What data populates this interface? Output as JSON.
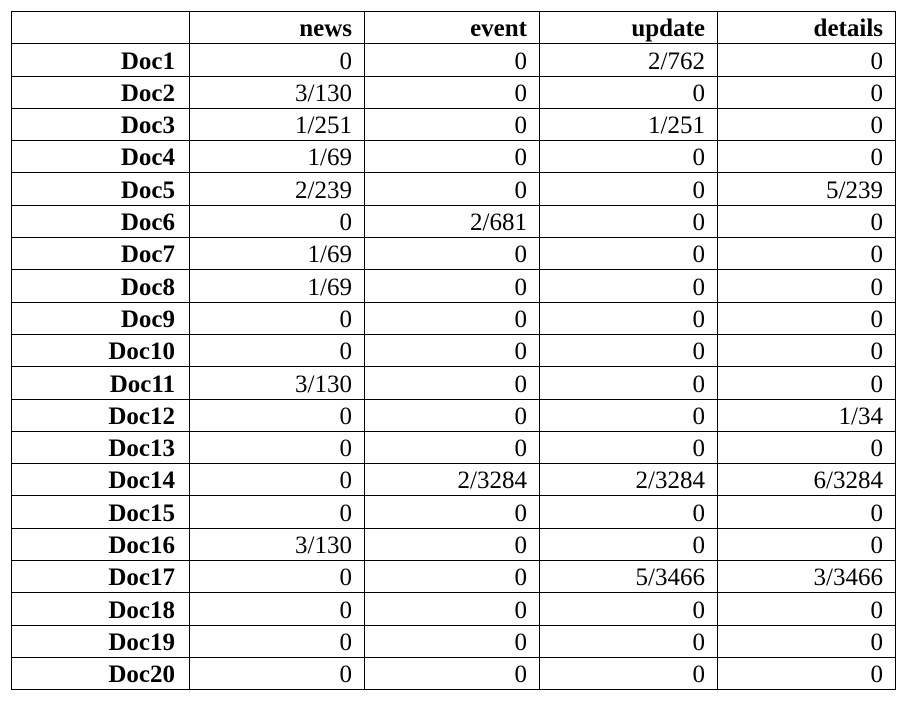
{
  "table": {
    "corner": "",
    "columns": [
      "news",
      "event",
      "update",
      "details"
    ],
    "rows": [
      {
        "label": "Doc1",
        "values": [
          "0",
          "0",
          "2/762",
          "0"
        ]
      },
      {
        "label": "Doc2",
        "values": [
          "3/130",
          "0",
          "0",
          "0"
        ]
      },
      {
        "label": "Doc3",
        "values": [
          "1/251",
          "0",
          "1/251",
          "0"
        ]
      },
      {
        "label": "Doc4",
        "values": [
          "1/69",
          "0",
          "0",
          "0"
        ]
      },
      {
        "label": "Doc5",
        "values": [
          "2/239",
          "0",
          "0",
          "5/239"
        ]
      },
      {
        "label": "Doc6",
        "values": [
          "0",
          "2/681",
          "0",
          "0"
        ]
      },
      {
        "label": "Doc7",
        "values": [
          "1/69",
          "0",
          "0",
          "0"
        ]
      },
      {
        "label": "Doc8",
        "values": [
          "1/69",
          "0",
          "0",
          "0"
        ]
      },
      {
        "label": "Doc9",
        "values": [
          "0",
          "0",
          "0",
          "0"
        ]
      },
      {
        "label": "Doc10",
        "values": [
          "0",
          "0",
          "0",
          "0"
        ]
      },
      {
        "label": "Doc11",
        "values": [
          "3/130",
          "0",
          "0",
          "0"
        ]
      },
      {
        "label": "Doc12",
        "values": [
          "0",
          "0",
          "0",
          "1/34"
        ]
      },
      {
        "label": "Doc13",
        "values": [
          "0",
          "0",
          "0",
          "0"
        ]
      },
      {
        "label": "Doc14",
        "values": [
          "0",
          "2/3284",
          "2/3284",
          "6/3284"
        ]
      },
      {
        "label": "Doc15",
        "values": [
          "0",
          "0",
          "0",
          "0"
        ]
      },
      {
        "label": "Doc16",
        "values": [
          "3/130",
          "0",
          "0",
          "0"
        ]
      },
      {
        "label": "Doc17",
        "values": [
          "0",
          "0",
          "5/3466",
          "3/3466"
        ]
      },
      {
        "label": "Doc18",
        "values": [
          "0",
          "0",
          "0",
          "0"
        ]
      },
      {
        "label": "Doc19",
        "values": [
          "0",
          "0",
          "0",
          "0"
        ]
      },
      {
        "label": "Doc20",
        "values": [
          "0",
          "0",
          "0",
          "0"
        ]
      }
    ]
  }
}
